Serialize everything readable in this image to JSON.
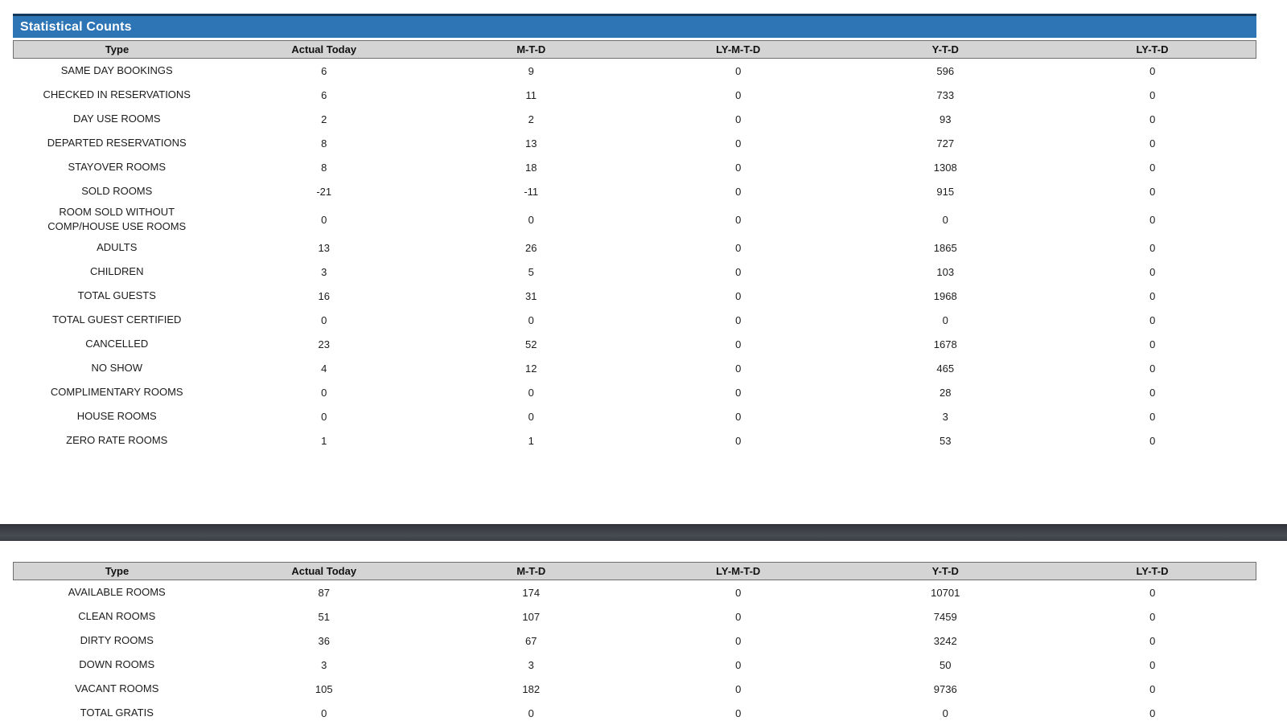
{
  "title_bar": {
    "label": "Statistical Counts"
  },
  "columns": [
    "Type",
    "Actual Today",
    "M-T-D",
    "LY-M-T-D",
    "Y-T-D",
    "LY-T-D"
  ],
  "statistical_counts": {
    "rows": [
      {
        "type": "SAME DAY BOOKINGS",
        "actual_today": "6",
        "mtd": "9",
        "ly_mtd": "0",
        "ytd": "596",
        "ly_td": "0"
      },
      {
        "type": "CHECKED IN RESERVATIONS",
        "actual_today": "6",
        "mtd": "11",
        "ly_mtd": "0",
        "ytd": "733",
        "ly_td": "0"
      },
      {
        "type": "DAY USE ROOMS",
        "actual_today": "2",
        "mtd": "2",
        "ly_mtd": "0",
        "ytd": "93",
        "ly_td": "0"
      },
      {
        "type": "DEPARTED RESERVATIONS",
        "actual_today": "8",
        "mtd": "13",
        "ly_mtd": "0",
        "ytd": "727",
        "ly_td": "0"
      },
      {
        "type": "STAYOVER ROOMS",
        "actual_today": "8",
        "mtd": "18",
        "ly_mtd": "0",
        "ytd": "1308",
        "ly_td": "0"
      },
      {
        "type": "SOLD ROOMS",
        "actual_today": "-21",
        "mtd": "-11",
        "ly_mtd": "0",
        "ytd": "915",
        "ly_td": "0"
      },
      {
        "type": "ROOM SOLD WITHOUT\nCOMP/HOUSE USE ROOMS",
        "actual_today": "0",
        "mtd": "0",
        "ly_mtd": "0",
        "ytd": "0",
        "ly_td": "0"
      },
      {
        "type": "ADULTS",
        "actual_today": "13",
        "mtd": "26",
        "ly_mtd": "0",
        "ytd": "1865",
        "ly_td": "0"
      },
      {
        "type": "CHILDREN",
        "actual_today": "3",
        "mtd": "5",
        "ly_mtd": "0",
        "ytd": "103",
        "ly_td": "0"
      },
      {
        "type": "TOTAL GUESTS",
        "actual_today": "16",
        "mtd": "31",
        "ly_mtd": "0",
        "ytd": "1968",
        "ly_td": "0"
      },
      {
        "type": "TOTAL GUEST CERTIFIED",
        "actual_today": "0",
        "mtd": "0",
        "ly_mtd": "0",
        "ytd": "0",
        "ly_td": "0"
      },
      {
        "type": "CANCELLED",
        "actual_today": "23",
        "mtd": "52",
        "ly_mtd": "0",
        "ytd": "1678",
        "ly_td": "0"
      },
      {
        "type": "NO SHOW",
        "actual_today": "4",
        "mtd": "12",
        "ly_mtd": "0",
        "ytd": "465",
        "ly_td": "0"
      },
      {
        "type": "COMPLIMENTARY ROOMS",
        "actual_today": "0",
        "mtd": "0",
        "ly_mtd": "0",
        "ytd": "28",
        "ly_td": "0"
      },
      {
        "type": "HOUSE ROOMS",
        "actual_today": "0",
        "mtd": "0",
        "ly_mtd": "0",
        "ytd": "3",
        "ly_td": "0"
      },
      {
        "type": "ZERO RATE ROOMS",
        "actual_today": "1",
        "mtd": "1",
        "ly_mtd": "0",
        "ytd": "53",
        "ly_td": "0"
      }
    ]
  },
  "room_counts": {
    "rows": [
      {
        "type": "AVAILABLE ROOMS",
        "actual_today": "87",
        "mtd": "174",
        "ly_mtd": "0",
        "ytd": "10701",
        "ly_td": "0"
      },
      {
        "type": "CLEAN ROOMS",
        "actual_today": "51",
        "mtd": "107",
        "ly_mtd": "0",
        "ytd": "7459",
        "ly_td": "0"
      },
      {
        "type": "DIRTY ROOMS",
        "actual_today": "36",
        "mtd": "67",
        "ly_mtd": "0",
        "ytd": "3242",
        "ly_td": "0"
      },
      {
        "type": "DOWN ROOMS",
        "actual_today": "3",
        "mtd": "3",
        "ly_mtd": "0",
        "ytd": "50",
        "ly_td": "0"
      },
      {
        "type": "VACANT ROOMS",
        "actual_today": "105",
        "mtd": "182",
        "ly_mtd": "0",
        "ytd": "9736",
        "ly_td": "0"
      },
      {
        "type": "TOTAL GRATIS",
        "actual_today": "0",
        "mtd": "0",
        "ly_mtd": "0",
        "ytd": "0",
        "ly_td": "0"
      }
    ]
  },
  "colors": {
    "title_bar_bg": "#2E75B6",
    "title_bar_border": "#17375D",
    "title_text": "#FFFFFF",
    "header_bg": "#D4D4D4",
    "header_border": "#6E6E6E",
    "body_text": "#1C1C1C",
    "divider": "#3F434A"
  }
}
